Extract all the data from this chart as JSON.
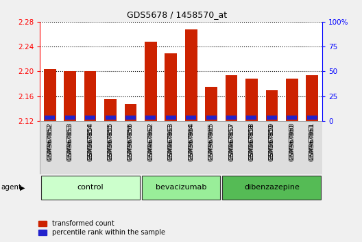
{
  "title": "GDS5678 / 1458570_at",
  "samples": [
    "GSM967852",
    "GSM967853",
    "GSM967854",
    "GSM967855",
    "GSM967856",
    "GSM967862",
    "GSM967863",
    "GSM967864",
    "GSM967865",
    "GSM967857",
    "GSM967858",
    "GSM967859",
    "GSM967860",
    "GSM967861"
  ],
  "red_values": [
    2.204,
    2.2,
    2.2,
    2.155,
    2.148,
    2.248,
    2.229,
    2.268,
    2.175,
    2.194,
    2.188,
    2.17,
    2.188,
    2.194
  ],
  "blue_pct": [
    12,
    13,
    12,
    11,
    10,
    12,
    10,
    15,
    13,
    12,
    12,
    12,
    10,
    10
  ],
  "y_min": 2.12,
  "y_max": 2.28,
  "y_ticks": [
    2.12,
    2.16,
    2.2,
    2.24,
    2.28
  ],
  "right_y_ticks": [
    0,
    25,
    50,
    75,
    100
  ],
  "right_y_labels": [
    "0",
    "25",
    "50",
    "75",
    "100%"
  ],
  "groups": [
    {
      "label": "control",
      "start": 0,
      "end": 5,
      "color": "#ccffcc"
    },
    {
      "label": "bevacizumab",
      "start": 5,
      "end": 9,
      "color": "#99ee99"
    },
    {
      "label": "dibenzazepine",
      "start": 9,
      "end": 14,
      "color": "#55bb55"
    }
  ],
  "bar_color_red": "#cc2200",
  "bar_color_blue": "#2222cc",
  "background_color": "#f0f0f0",
  "plot_bg": "#ffffff",
  "bar_width": 0.6,
  "legend_items": [
    "transformed count",
    "percentile rank within the sample"
  ]
}
